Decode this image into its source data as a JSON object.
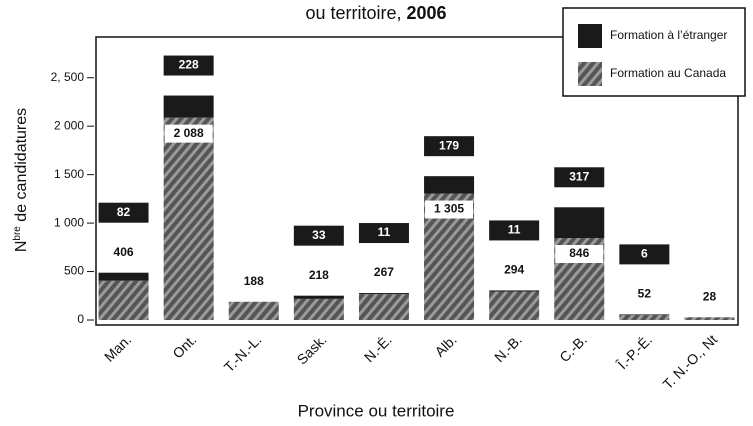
{
  "chart_data": {
    "type": "stacked_bar",
    "title": "ou territoire,",
    "title_year": "2006",
    "ylabel_parts": [
      "N",
      "bre",
      " de candidatures"
    ],
    "xlabel": "Province ou territoire",
    "categories": [
      "Man.",
      "Ont.",
      "T.-N.-L.",
      "Sask.",
      "N.-É.",
      "Alb.",
      "N.-B.",
      "C.-B.",
      "Î.-P.-É.",
      "T. N.-O., Nt"
    ],
    "series": [
      {
        "name": "Formation au Canada",
        "color": "#555555",
        "hatch": true,
        "values": [
          406,
          2088,
          188,
          218,
          267,
          1305,
          294,
          846,
          52,
          28
        ],
        "value_labels": [
          "406",
          "2 088",
          "188",
          "218",
          "267",
          "1 305",
          "294",
          "846",
          "52",
          "28"
        ]
      },
      {
        "name": "Formation à l’étranger",
        "color": "#1a1a1a",
        "hatch": false,
        "values": [
          82,
          228,
          null,
          33,
          11,
          179,
          11,
          317,
          6,
          null
        ]
      }
    ],
    "ylim": [
      0,
      2920
    ],
    "yticks": [
      0,
      500,
      {
        "value": 1000,
        "label": "1 000"
      },
      {
        "value": 1500,
        "label": "1 500"
      },
      {
        "value": 2000,
        "label": "2 000"
      },
      {
        "value": 2500,
        "label": "2, 500"
      }
    ],
    "legend": "upper right"
  }
}
